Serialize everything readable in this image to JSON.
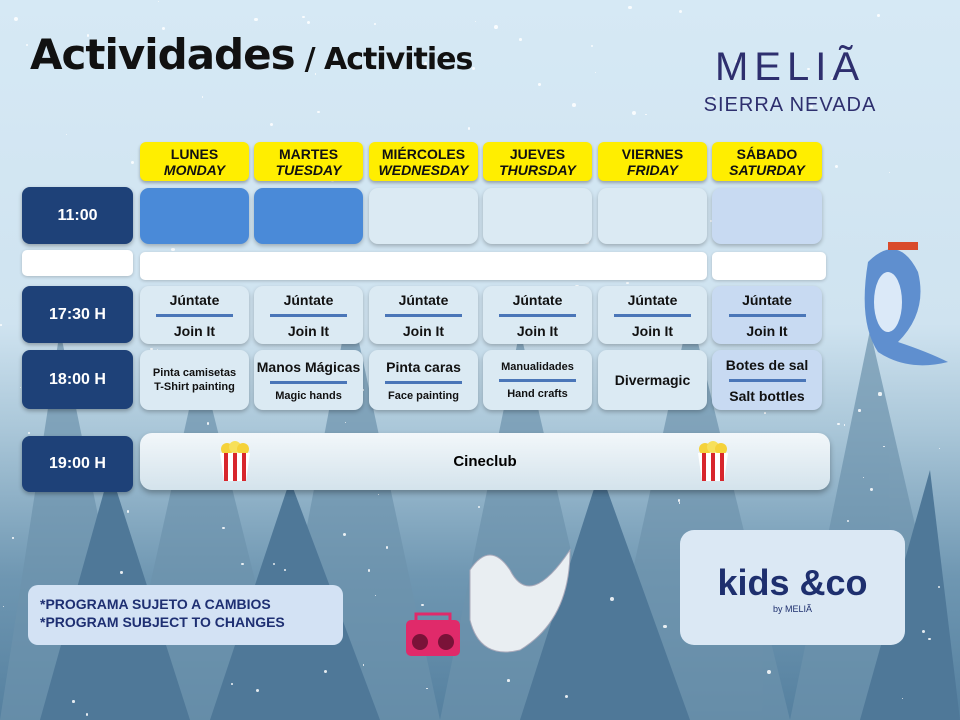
{
  "header": {
    "title": "Actividades",
    "title_en": "/ Activities",
    "brand": "MELIÃ",
    "brand_sub": "SIERRA NEVADA"
  },
  "days": [
    {
      "es": "LUNES",
      "en": "MONDAY"
    },
    {
      "es": "MARTES",
      "en": "TUESDAY"
    },
    {
      "es": "MIÉRCOLES",
      "en": "WEDNESDAY"
    },
    {
      "es": "JUEVES",
      "en": "THURSDAY"
    },
    {
      "es": "VIERNES",
      "en": "FRIDAY"
    },
    {
      "es": "SÁBADO",
      "en": "SATURDAY"
    }
  ],
  "times": [
    "11:00",
    "17:30 H",
    "18:00 H",
    "19:00 H"
  ],
  "row1730": [
    {
      "es": "Júntate",
      "en": "Join It"
    },
    {
      "es": "Júntate",
      "en": "Join It"
    },
    {
      "es": "Júntate",
      "en": "Join It"
    },
    {
      "es": "Júntate",
      "en": "Join It"
    },
    {
      "es": "Júntate",
      "en": "Join It"
    },
    {
      "es": "Júntate",
      "en": "Join It"
    }
  ],
  "row1800": [
    {
      "es": "Pinta camisetas",
      "en": "T-Shirt painting"
    },
    {
      "es": "Manos Mágicas",
      "en": "Magic hands"
    },
    {
      "es": "Pinta caras",
      "en": "Face painting"
    },
    {
      "es": "Manualidades",
      "en": "Hand crafts"
    },
    {
      "es": "Divermagic",
      "en": ""
    },
    {
      "es": "Botes de sal",
      "en": "Salt bottles"
    }
  ],
  "row1900": {
    "label": "Cineclub"
  },
  "note": {
    "line1": "*PROGRAMA SUJETO A CAMBIOS",
    "line2": "*PROGRAM SUBJECT TO CHANGES"
  },
  "kids_logo": {
    "text": "kids &co",
    "sub": "by MELIÃ"
  },
  "colors": {
    "time_bg": "#1e4178",
    "day_bg": "#ffee00",
    "active_cell": "#4a8ad8"
  }
}
